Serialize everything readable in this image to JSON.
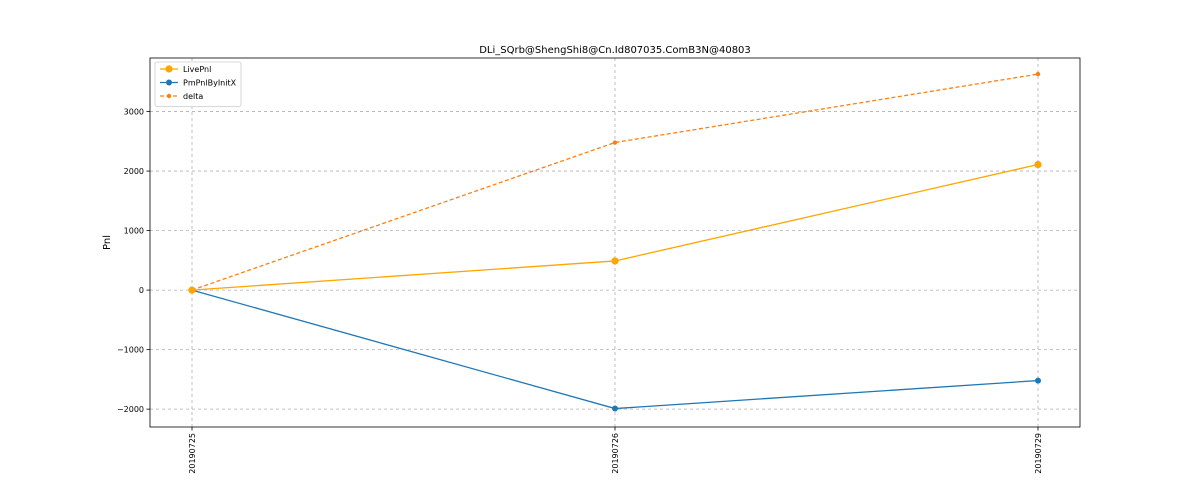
{
  "chart_data": {
    "type": "line",
    "title": "DLi_SQrb@ShengShi8@Cn.Id807035.ComB3N@40803",
    "xlabel": "",
    "ylabel": "Pnl",
    "categories": [
      "20190725",
      "20190726",
      "20190729"
    ],
    "ylim": [
      -2300,
      3900
    ],
    "yticks": [
      -2000,
      -1000,
      0,
      1000,
      2000,
      3000
    ],
    "ytick_labels": [
      "−2000",
      "−1000",
      "0",
      "1000",
      "2000",
      "3000"
    ],
    "grid": true,
    "legend_position": "top-left",
    "series": [
      {
        "name": "LivePnl",
        "values": [
          0,
          490,
          2110
        ],
        "color": "#ffa500",
        "line_style": "solid",
        "marker": "large-circle"
      },
      {
        "name": "PmPnlByInitX",
        "values": [
          0,
          -1990,
          -1520
        ],
        "color": "#1f77b4",
        "line_style": "solid",
        "marker": "circle"
      },
      {
        "name": "delta",
        "values": [
          0,
          2480,
          3630
        ],
        "color": "#ff7f0e",
        "line_style": "dashed",
        "marker": "small-circle"
      }
    ]
  }
}
